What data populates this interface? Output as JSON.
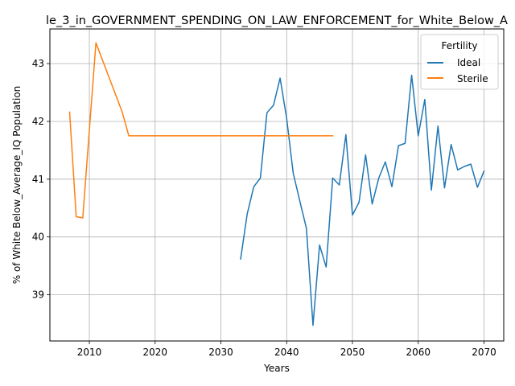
{
  "chart_data": {
    "type": "line",
    "title": "le_3_in_GOVERNMENT_SPENDING_ON_LAW_ENFORCEMENT_for_White_Below_A",
    "xlabel": "Years",
    "ylabel": "% of White Below_Average_IQ Population",
    "xlim": [
      2004,
      2073
    ],
    "ylim": [
      38.2,
      43.6
    ],
    "xticks": [
      2010,
      2020,
      2030,
      2040,
      2050,
      2060,
      2070
    ],
    "yticks": [
      39,
      40,
      41,
      42,
      43
    ],
    "grid": true,
    "legend": {
      "title": "Fertility",
      "placement": "top-right"
    },
    "series": [
      {
        "name": "Ideal",
        "color": "#1f77b4",
        "x": [
          2033,
          2034,
          2035,
          2036,
          2037,
          2038,
          2039,
          2040,
          2041,
          2042,
          2043,
          2044,
          2045,
          2046,
          2047,
          2048,
          2049,
          2050,
          2051,
          2052,
          2053,
          2054,
          2055,
          2056,
          2057,
          2058,
          2059,
          2060,
          2061,
          2062,
          2063,
          2064,
          2065,
          2066,
          2067,
          2068,
          2069,
          2070
        ],
        "y": [
          39.62,
          40.4,
          40.87,
          41.02,
          42.15,
          42.28,
          42.75,
          42.05,
          41.1,
          40.62,
          40.15,
          38.47,
          39.86,
          39.48,
          41.02,
          40.9,
          41.77,
          40.38,
          40.6,
          41.42,
          40.57,
          41.02,
          41.3,
          40.87,
          41.58,
          41.62,
          42.8,
          41.75,
          42.38,
          40.81,
          41.92,
          40.85,
          41.6,
          41.16,
          41.22,
          41.26,
          40.86,
          41.14
        ]
      },
      {
        "name": "Sterile",
        "color": "#ff7f0e",
        "x": [
          2007,
          2008,
          2009,
          2010,
          2011,
          2012,
          2013,
          2014,
          2015,
          2016,
          2017,
          2018,
          2019,
          2020,
          2021,
          2022,
          2023,
          2024,
          2025,
          2026,
          2027,
          2028,
          2029,
          2030,
          2031,
          2032,
          2033,
          2034,
          2035,
          2036,
          2037,
          2038,
          2039,
          2040,
          2041,
          2042,
          2043,
          2044,
          2045,
          2046,
          2047
        ],
        "y": [
          42.16,
          40.35,
          40.33,
          41.85,
          43.36,
          43.06,
          42.76,
          42.46,
          42.16,
          41.75,
          41.75,
          41.75,
          41.75,
          41.75,
          41.75,
          41.75,
          41.75,
          41.75,
          41.75,
          41.75,
          41.75,
          41.75,
          41.75,
          41.75,
          41.75,
          41.75,
          41.75,
          41.75,
          41.75,
          41.75,
          41.75,
          41.75,
          41.75,
          41.75,
          41.75,
          41.75,
          41.75,
          41.75,
          41.75,
          41.75,
          41.75
        ]
      }
    ]
  }
}
